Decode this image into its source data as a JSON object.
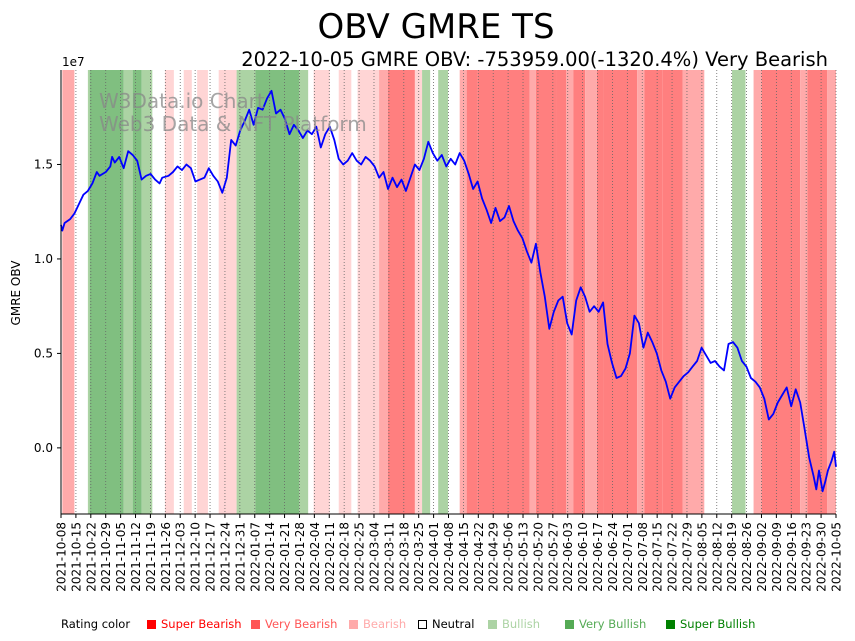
{
  "chart_data": {
    "type": "line",
    "title": "OBV GMRE TS",
    "subtitle": "2022-10-05 GMRE OBV: -753959.00(-1320.4%) Very Bearish",
    "ylabel": "GMRE OBV",
    "xlabel": "",
    "y_multiplier": "1e7",
    "ylim": [
      -0.35,
      2.0
    ],
    "y_ticks": [
      0.0,
      0.5,
      1.0,
      1.5
    ],
    "y_tick_labels": [
      "0.0",
      "0.5",
      "1.0",
      "1.5"
    ],
    "x_ticks": [
      "2021-10-08",
      "2021-10-15",
      "2021-10-22",
      "2021-10-29",
      "2021-11-05",
      "2021-11-12",
      "2021-11-19",
      "2021-11-26",
      "2021-12-03",
      "2021-12-10",
      "2021-12-17",
      "2021-12-24",
      "2021-12-31",
      "2022-01-07",
      "2022-01-14",
      "2022-01-21",
      "2022-01-28",
      "2022-02-04",
      "2022-02-11",
      "2022-02-18",
      "2022-02-25",
      "2022-03-04",
      "2022-03-11",
      "2022-03-18",
      "2022-03-25",
      "2022-04-01",
      "2022-04-08",
      "2022-04-15",
      "2022-04-22",
      "2022-04-29",
      "2022-05-06",
      "2022-05-13",
      "2022-05-20",
      "2022-05-27",
      "2022-06-03",
      "2022-06-10",
      "2022-06-17",
      "2022-06-24",
      "2022-07-01",
      "2022-07-08",
      "2022-07-15",
      "2022-07-22",
      "2022-07-29",
      "2022-08-05",
      "2022-08-12",
      "2022-08-19",
      "2022-08-26",
      "2022-09-02",
      "2022-09-09",
      "2022-09-16",
      "2022-09-23",
      "2022-09-30",
      "2022-10-05"
    ],
    "series": [
      {
        "name": "OBV",
        "color": "#0000ff",
        "points": [
          [
            0,
            1.18
          ],
          [
            0.15,
            1.15
          ],
          [
            0.4,
            1.19
          ],
          [
            1,
            1.21
          ],
          [
            1.5,
            1.24
          ],
          [
            2,
            1.29
          ],
          [
            2.5,
            1.34
          ],
          [
            3,
            1.36
          ],
          [
            3.5,
            1.4
          ],
          [
            4,
            1.46
          ],
          [
            4.3,
            1.44
          ],
          [
            5,
            1.46
          ],
          [
            5.5,
            1.49
          ],
          [
            5.7,
            1.54
          ],
          [
            6,
            1.51
          ],
          [
            6.5,
            1.54
          ],
          [
            7,
            1.48
          ],
          [
            7.5,
            1.57
          ],
          [
            8,
            1.55
          ],
          [
            8.5,
            1.52
          ],
          [
            9,
            1.42
          ],
          [
            9.5,
            1.44
          ],
          [
            10,
            1.45
          ],
          [
            10.5,
            1.42
          ],
          [
            11,
            1.4
          ],
          [
            11.3,
            1.43
          ],
          [
            12,
            1.44
          ],
          [
            12.5,
            1.46
          ],
          [
            13,
            1.49
          ],
          [
            13.5,
            1.47
          ],
          [
            14,
            1.5
          ],
          [
            14.5,
            1.48
          ],
          [
            15,
            1.41
          ],
          [
            15.5,
            1.42
          ],
          [
            16,
            1.43
          ],
          [
            16.5,
            1.48
          ],
          [
            17,
            1.44
          ],
          [
            17.5,
            1.41
          ],
          [
            18,
            1.35
          ],
          [
            18.5,
            1.43
          ],
          [
            19,
            1.63
          ],
          [
            19.5,
            1.6
          ],
          [
            20,
            1.68
          ],
          [
            20.5,
            1.73
          ],
          [
            21,
            1.79
          ],
          [
            21.5,
            1.71
          ],
          [
            22,
            1.8
          ],
          [
            22.5,
            1.79
          ],
          [
            23,
            1.85
          ],
          [
            23.5,
            1.89
          ],
          [
            24,
            1.77
          ],
          [
            24.5,
            1.79
          ],
          [
            25,
            1.74
          ],
          [
            25.5,
            1.66
          ],
          [
            26,
            1.71
          ],
          [
            26.5,
            1.68
          ],
          [
            27,
            1.64
          ],
          [
            27.5,
            1.68
          ],
          [
            28,
            1.66
          ],
          [
            28.5,
            1.7
          ],
          [
            29,
            1.59
          ],
          [
            29.5,
            1.66
          ],
          [
            30,
            1.7
          ],
          [
            30.5,
            1.63
          ],
          [
            31,
            1.53
          ],
          [
            31.5,
            1.5
          ],
          [
            32,
            1.52
          ],
          [
            32.5,
            1.56
          ],
          [
            33,
            1.52
          ],
          [
            33.5,
            1.5
          ],
          [
            34,
            1.54
          ],
          [
            34.5,
            1.52
          ],
          [
            35,
            1.49
          ],
          [
            35.5,
            1.43
          ],
          [
            36,
            1.46
          ],
          [
            36.5,
            1.37
          ],
          [
            37,
            1.43
          ],
          [
            37.5,
            1.38
          ],
          [
            38,
            1.42
          ],
          [
            38.5,
            1.36
          ],
          [
            39,
            1.43
          ],
          [
            39.5,
            1.5
          ],
          [
            40,
            1.47
          ],
          [
            40.5,
            1.53
          ],
          [
            41,
            1.62
          ],
          [
            41.5,
            1.56
          ],
          [
            42,
            1.52
          ],
          [
            42.5,
            1.55
          ],
          [
            43,
            1.49
          ],
          [
            43.5,
            1.53
          ],
          [
            44,
            1.5
          ],
          [
            44.5,
            1.56
          ],
          [
            45,
            1.52
          ],
          [
            45.5,
            1.45
          ],
          [
            46,
            1.37
          ],
          [
            46.5,
            1.41
          ],
          [
            47,
            1.32
          ],
          [
            47.5,
            1.26
          ],
          [
            48,
            1.19
          ],
          [
            48.5,
            1.27
          ],
          [
            49,
            1.2
          ],
          [
            49.5,
            1.22
          ],
          [
            50,
            1.28
          ],
          [
            50.5,
            1.2
          ],
          [
            51,
            1.15
          ],
          [
            51.5,
            1.11
          ],
          [
            52,
            1.04
          ],
          [
            52.5,
            0.98
          ],
          [
            53,
            1.08
          ],
          [
            53.5,
            0.93
          ],
          [
            54,
            0.8
          ],
          [
            54.5,
            0.63
          ],
          [
            55,
            0.72
          ],
          [
            55.5,
            0.78
          ],
          [
            56,
            0.8
          ],
          [
            56.5,
            0.66
          ],
          [
            57,
            0.6
          ],
          [
            57.5,
            0.78
          ],
          [
            58,
            0.85
          ],
          [
            58.5,
            0.8
          ],
          [
            59,
            0.72
          ],
          [
            59.5,
            0.75
          ],
          [
            60,
            0.72
          ],
          [
            60.5,
            0.77
          ],
          [
            61,
            0.55
          ],
          [
            61.5,
            0.45
          ],
          [
            62,
            0.37
          ],
          [
            62.5,
            0.38
          ],
          [
            63,
            0.42
          ],
          [
            63.5,
            0.5
          ],
          [
            64,
            0.7
          ],
          [
            64.5,
            0.66
          ],
          [
            65,
            0.53
          ],
          [
            65.5,
            0.61
          ],
          [
            66,
            0.56
          ],
          [
            66.5,
            0.5
          ],
          [
            67,
            0.41
          ],
          [
            67.5,
            0.35
          ],
          [
            68,
            0.26
          ],
          [
            68.5,
            0.32
          ],
          [
            69,
            0.35
          ],
          [
            69.5,
            0.38
          ],
          [
            70,
            0.4
          ],
          [
            70.5,
            0.43
          ],
          [
            71,
            0.46
          ],
          [
            71.5,
            0.53
          ],
          [
            72,
            0.49
          ],
          [
            72.5,
            0.45
          ],
          [
            73,
            0.46
          ],
          [
            73.5,
            0.43
          ],
          [
            74,
            0.41
          ],
          [
            74.5,
            0.55
          ],
          [
            75,
            0.56
          ],
          [
            75.5,
            0.53
          ],
          [
            76,
            0.46
          ],
          [
            76.5,
            0.43
          ],
          [
            77,
            0.37
          ],
          [
            77.5,
            0.35
          ],
          [
            78,
            0.32
          ],
          [
            78.5,
            0.26
          ],
          [
            79,
            0.15
          ],
          [
            79.5,
            0.18
          ],
          [
            80,
            0.24
          ],
          [
            80.5,
            0.28
          ],
          [
            81,
            0.32
          ],
          [
            81.5,
            0.22
          ],
          [
            82,
            0.31
          ],
          [
            82.5,
            0.24
          ],
          [
            83,
            0.1
          ],
          [
            83.5,
            -0.05
          ],
          [
            84,
            -0.15
          ],
          [
            84.3,
            -0.22
          ],
          [
            84.6,
            -0.12
          ],
          [
            85,
            -0.23
          ],
          [
            85.3,
            -0.18
          ],
          [
            85.6,
            -0.12
          ],
          [
            86,
            -0.07
          ],
          [
            86.3,
            -0.02
          ],
          [
            86.5,
            -0.1
          ]
        ]
      }
    ],
    "x_range": [
      0,
      86.5
    ],
    "rating_bands": [
      {
        "from": 0.15,
        "to": 1.5,
        "rating": "bearish"
      },
      {
        "from": 1.5,
        "to": 3,
        "rating": "neutral"
      },
      {
        "from": 3,
        "to": 3.2,
        "rating": "bullish"
      },
      {
        "from": 3.2,
        "to": 7,
        "rating": "very_bullish"
      },
      {
        "from": 7,
        "to": 8,
        "rating": "bullish"
      },
      {
        "from": 8,
        "to": 9,
        "rating": "very_bullish"
      },
      {
        "from": 9,
        "to": 10.2,
        "rating": "bullish"
      },
      {
        "from": 10.2,
        "to": 11.6,
        "rating": "neutral"
      },
      {
        "from": 11.6,
        "to": 12.6,
        "rating": "light_bearish"
      },
      {
        "from": 13.7,
        "to": 14.6,
        "rating": "light_bearish"
      },
      {
        "from": 15.2,
        "to": 16.4,
        "rating": "light_bearish"
      },
      {
        "from": 17.6,
        "to": 19.6,
        "rating": "light_bearish"
      },
      {
        "from": 19.6,
        "to": 21.7,
        "rating": "bullish"
      },
      {
        "from": 21.7,
        "to": 26.6,
        "rating": "very_bullish"
      },
      {
        "from": 26.6,
        "to": 27.6,
        "rating": "bullish"
      },
      {
        "from": 27.6,
        "to": 28.2,
        "rating": "neutral"
      },
      {
        "from": 28.2,
        "to": 30,
        "rating": "light_bearish"
      },
      {
        "from": 31,
        "to": 32.4,
        "rating": "light_bearish"
      },
      {
        "from": 33.1,
        "to": 35.5,
        "rating": "light_bearish"
      },
      {
        "from": 35.5,
        "to": 36.5,
        "rating": "bearish"
      },
      {
        "from": 36.5,
        "to": 39.5,
        "rating": "very_bearish"
      },
      {
        "from": 39.5,
        "to": 40.3,
        "rating": "light_bearish"
      },
      {
        "from": 40.3,
        "to": 41.2,
        "rating": "bullish"
      },
      {
        "from": 41.6,
        "to": 42.1,
        "rating": "neutral"
      },
      {
        "from": 42.1,
        "to": 43.2,
        "rating": "bullish"
      },
      {
        "from": 43.7,
        "to": 44.5,
        "rating": "neutral"
      },
      {
        "from": 44.5,
        "to": 46.1,
        "rating": "bearish"
      },
      {
        "from": 45.3,
        "to": 46.5,
        "rating": "very_bearish"
      },
      {
        "from": 46.5,
        "to": 52.3,
        "rating": "very_bearish"
      },
      {
        "from": 52.3,
        "to": 53,
        "rating": "bearish"
      },
      {
        "from": 53,
        "to": 55.3,
        "rating": "very_bearish"
      },
      {
        "from": 55.3,
        "to": 56.4,
        "rating": "very_bearish"
      },
      {
        "from": 56.4,
        "to": 57.2,
        "rating": "bearish"
      },
      {
        "from": 57.2,
        "to": 58.5,
        "rating": "very_bearish"
      },
      {
        "from": 58.5,
        "to": 59.8,
        "rating": "bearish"
      },
      {
        "from": 59.8,
        "to": 60.5,
        "rating": "very_bearish"
      },
      {
        "from": 60.5,
        "to": 62,
        "rating": "very_bearish"
      },
      {
        "from": 62,
        "to": 64.3,
        "rating": "very_bearish"
      },
      {
        "from": 64.3,
        "to": 65.1,
        "rating": "bearish"
      },
      {
        "from": 65.1,
        "to": 67.1,
        "rating": "very_bearish"
      },
      {
        "from": 67.1,
        "to": 69.4,
        "rating": "very_bearish"
      },
      {
        "from": 69.4,
        "to": 71.8,
        "rating": "bearish"
      },
      {
        "from": 72.8,
        "to": 73.3,
        "rating": "neutral"
      },
      {
        "from": 73.5,
        "to": 74.8,
        "rating": "neutral"
      },
      {
        "from": 74.9,
        "to": 76.4,
        "rating": "bullish"
      },
      {
        "from": 76.4,
        "to": 77.3,
        "rating": "neutral"
      },
      {
        "from": 77.3,
        "to": 78.2,
        "rating": "bearish"
      },
      {
        "from": 78.2,
        "to": 82.5,
        "rating": "very_bearish"
      },
      {
        "from": 82.5,
        "to": 83.3,
        "rating": "bearish"
      },
      {
        "from": 83.3,
        "to": 85.5,
        "rating": "very_bearish"
      },
      {
        "from": 85.5,
        "to": 86.5,
        "rating": "bearish"
      }
    ],
    "rating_colors": {
      "very_bearish": "#ff7f7f",
      "bearish": "#ffaaaa",
      "light_bearish": "#ffd5d5",
      "neutral": "#ffffff",
      "bullish": "#acd3a4",
      "very_bullish": "#80bf80"
    }
  },
  "watermark": {
    "line1": "W3Data.io Chart",
    "line2": "Web3 Data & NFT Platform"
  },
  "legend": {
    "label": "Rating color",
    "items": [
      {
        "text": "Super Bearish",
        "color": "#ff0000"
      },
      {
        "text": "Very Bearish",
        "color": "#ff5555"
      },
      {
        "text": "Bearish",
        "color": "#ffaaaa"
      },
      {
        "text": "Neutral",
        "color": "#000000"
      },
      {
        "text": "Bullish",
        "color": "#acd3a4"
      },
      {
        "text": "Very Bullish",
        "color": "#55aa55"
      },
      {
        "text": "Super Bullish",
        "color": "#008000"
      }
    ]
  }
}
